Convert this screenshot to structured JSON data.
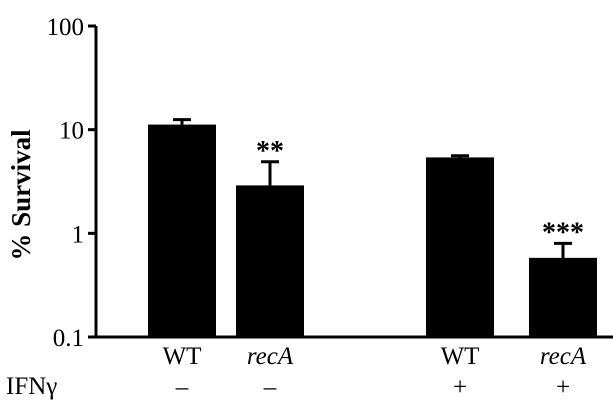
{
  "chart_data": {
    "type": "bar",
    "scale": "log",
    "title": "",
    "ylabel": "% Survival",
    "xlabel": "",
    "ylim": [
      0.1,
      100
    ],
    "yticks": [
      {
        "value": 100,
        "label": "100"
      },
      {
        "value": 10,
        "label": "10"
      },
      {
        "value": 1,
        "label": "1"
      },
      {
        "value": 0.1,
        "label": "0.1"
      }
    ],
    "grid": false,
    "bar_color": "#000000",
    "categories": [
      "WT",
      "recA",
      "WT",
      "recA"
    ],
    "italic_categories": [
      false,
      true,
      false,
      true
    ],
    "values": [
      11.2,
      2.9,
      5.4,
      0.58
    ],
    "error_upper": [
      12.5,
      4.9,
      5.6,
      0.8
    ],
    "significance": [
      "",
      "**",
      "",
      "***"
    ],
    "row_label": "IFNγ",
    "ifn_labels": [
      "–",
      "–",
      "+",
      "+"
    ]
  }
}
